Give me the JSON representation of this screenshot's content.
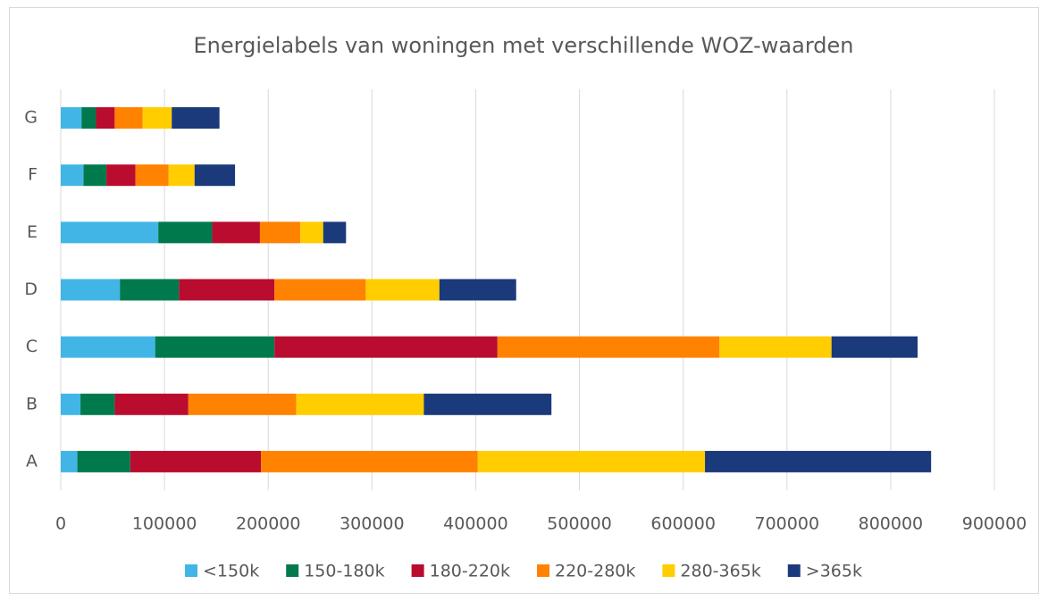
{
  "chart_data": {
    "type": "stacked_barh",
    "title": "Energielabels van woningen met verschillende WOZ-waarden",
    "categories": [
      "A",
      "B",
      "C",
      "D",
      "E",
      "F",
      "G"
    ],
    "series": [
      {
        "name": "<150k",
        "color": "#41b6e6",
        "values": [
          16000,
          19000,
          91000,
          57000,
          94000,
          22000,
          20000
        ]
      },
      {
        "name": "150-180k",
        "color": "#007a4d",
        "values": [
          51000,
          33000,
          115000,
          57000,
          52000,
          22000,
          14000
        ]
      },
      {
        "name": "180-220k",
        "color": "#ba0c2f",
        "values": [
          126000,
          71000,
          215000,
          92000,
          46000,
          28000,
          18000
        ]
      },
      {
        "name": "220-280k",
        "color": "#ff8200",
        "values": [
          209000,
          104000,
          214000,
          88000,
          39000,
          32000,
          27000
        ]
      },
      {
        "name": "280-365k",
        "color": "#ffcd00",
        "values": [
          219000,
          123000,
          108000,
          71000,
          22000,
          25000,
          28000
        ]
      },
      {
        "name": ">365k",
        "color": "#1b3a7b",
        "values": [
          218000,
          123000,
          83000,
          74000,
          22000,
          39000,
          46000
        ]
      }
    ],
    "xlim": [
      0,
      900000
    ],
    "xticks": [
      0,
      100000,
      200000,
      300000,
      400000,
      500000,
      600000,
      700000,
      800000,
      900000
    ],
    "grid": true,
    "legend": "bottom"
  }
}
